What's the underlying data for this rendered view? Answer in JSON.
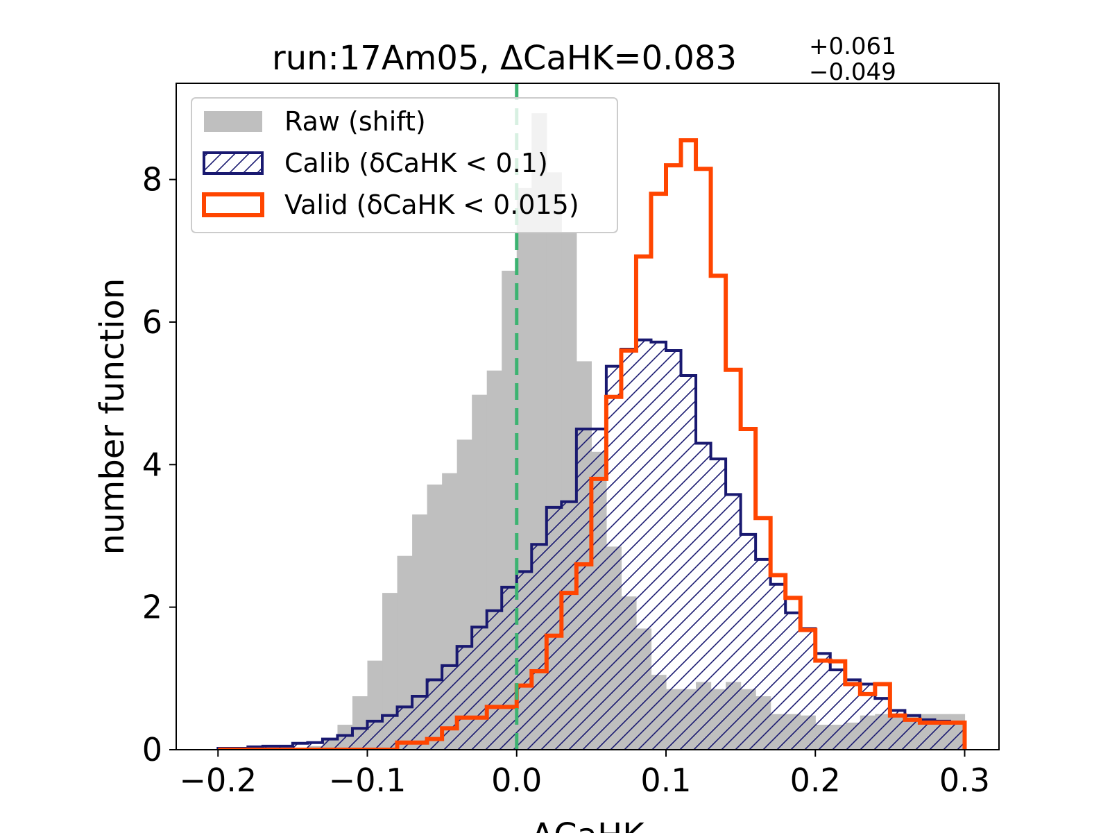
{
  "chart_data": {
    "type": "histogram",
    "title": {
      "prefix": "run:17Am05, ΔCaHK=0.083",
      "sup": "+0.061",
      "sub": "−0.049"
    },
    "xlabel": "ΔCaHK",
    "ylabel": "number function",
    "xlim": [
      -0.228,
      0.323
    ],
    "ylim": [
      0,
      9.35
    ],
    "xticks": [
      -0.2,
      -0.1,
      0.0,
      0.1,
      0.2,
      0.3
    ],
    "xtick_labels": [
      "−0.2",
      "−0.1",
      "0.0",
      "0.1",
      "0.2",
      "0.3"
    ],
    "yticks": [
      0,
      2,
      4,
      6,
      8
    ],
    "ytick_labels": [
      "0",
      "2",
      "4",
      "6",
      "8"
    ],
    "bin_edges_start": -0.2,
    "bin_width": 0.01,
    "vline": {
      "x": 0.0,
      "color": "#3cb371",
      "style": "dashed"
    },
    "series": [
      {
        "name": "Raw (shift)",
        "style": "filled",
        "color": "#bfbfbf",
        "values": [
          0,
          0,
          0,
          0,
          0,
          0,
          0.05,
          0.15,
          0.35,
          0.75,
          1.25,
          2.2,
          2.72,
          3.3,
          3.72,
          3.88,
          4.35,
          4.98,
          5.32,
          6.72,
          7.88,
          8.93,
          8.1,
          7.25,
          5.45,
          4.18,
          2.85,
          2.15,
          1.7,
          1.05,
          0.85,
          0.85,
          0.95,
          0.85,
          0.95,
          0.85,
          0.75,
          0.5,
          0.5,
          0.48,
          0.35,
          0.35,
          0.38,
          0.48,
          0.5,
          0.5,
          0.48,
          0.5,
          0.5,
          0.5
        ]
      },
      {
        "name": "Calib (δCaHK < 0.1)",
        "style": "hatched",
        "color": "#191970",
        "values": [
          0.02,
          0.02,
          0.04,
          0.05,
          0.05,
          0.09,
          0.1,
          0.15,
          0.2,
          0.3,
          0.4,
          0.48,
          0.6,
          0.75,
          0.98,
          1.18,
          1.45,
          1.72,
          1.95,
          2.28,
          2.5,
          2.88,
          3.4,
          3.48,
          4.5,
          4.5,
          5.38,
          5.62,
          5.75,
          5.72,
          5.6,
          5.25,
          4.3,
          4.08,
          3.58,
          3.02,
          2.67,
          2.32,
          1.92,
          1.7,
          1.35,
          1.12,
          0.98,
          0.92,
          0.72,
          0.55,
          0.48,
          0.42,
          0.4,
          0.38
        ]
      },
      {
        "name": "Valid (δCaHK < 0.015)",
        "style": "step",
        "color": "#ff4500",
        "values": [
          0,
          0,
          0,
          0,
          0,
          0,
          0,
          0,
          0,
          0,
          0,
          0,
          0.1,
          0.1,
          0.15,
          0.3,
          0.45,
          0.45,
          0.6,
          0.6,
          0.9,
          1.1,
          1.6,
          2.2,
          2.6,
          3.8,
          4.95,
          5.6,
          6.92,
          7.8,
          8.2,
          8.55,
          8.15,
          6.65,
          5.33,
          4.5,
          3.25,
          2.45,
          2.13,
          1.68,
          1.25,
          1.24,
          0.92,
          0.78,
          0.92,
          0.48,
          0.42,
          0.38,
          0.38,
          0.38
        ]
      }
    ],
    "legend": {
      "placement": "upper-left",
      "entries": [
        "Raw (shift)",
        "Calib (δCaHK < 0.1)",
        "Valid (δCaHK < 0.015)"
      ]
    }
  }
}
